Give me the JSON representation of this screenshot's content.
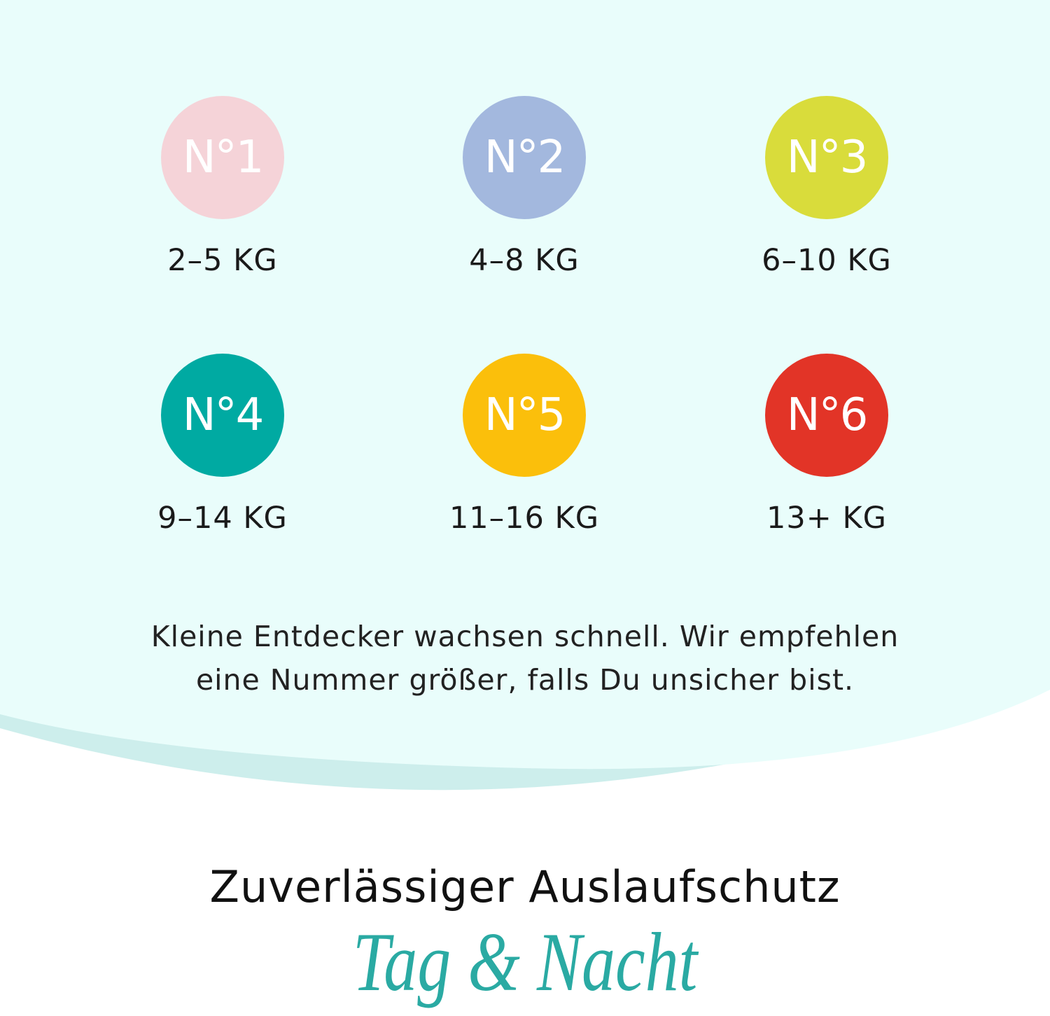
{
  "colors": {
    "background_top": "#e9fdfb",
    "band": "#cdeeec",
    "script": "#2aaaa3"
  },
  "sizes": [
    {
      "number": "N°1",
      "weight": "2–5 KG",
      "color": "#f5d3d8"
    },
    {
      "number": "N°2",
      "weight": "4–8 KG",
      "color": "#a3b8de"
    },
    {
      "number": "N°3",
      "weight": "6–10 KG",
      "color": "#d9dc3b"
    },
    {
      "number": "N°4",
      "weight": "9–14 KG",
      "color": "#00aaa2"
    },
    {
      "number": "N°5",
      "weight": "11–16 KG",
      "color": "#fbbf0b"
    },
    {
      "number": "N°6",
      "weight": "13+ KG",
      "color": "#e23427"
    }
  ],
  "note": {
    "line1": "Kleine Entdecker wachsen schnell. Wir empfehlen",
    "line2": "eine Nummer größer, falls Du unsicher bist."
  },
  "headline": "Zuverlässiger Auslaufschutz",
  "tagline": "Tag & Nacht"
}
